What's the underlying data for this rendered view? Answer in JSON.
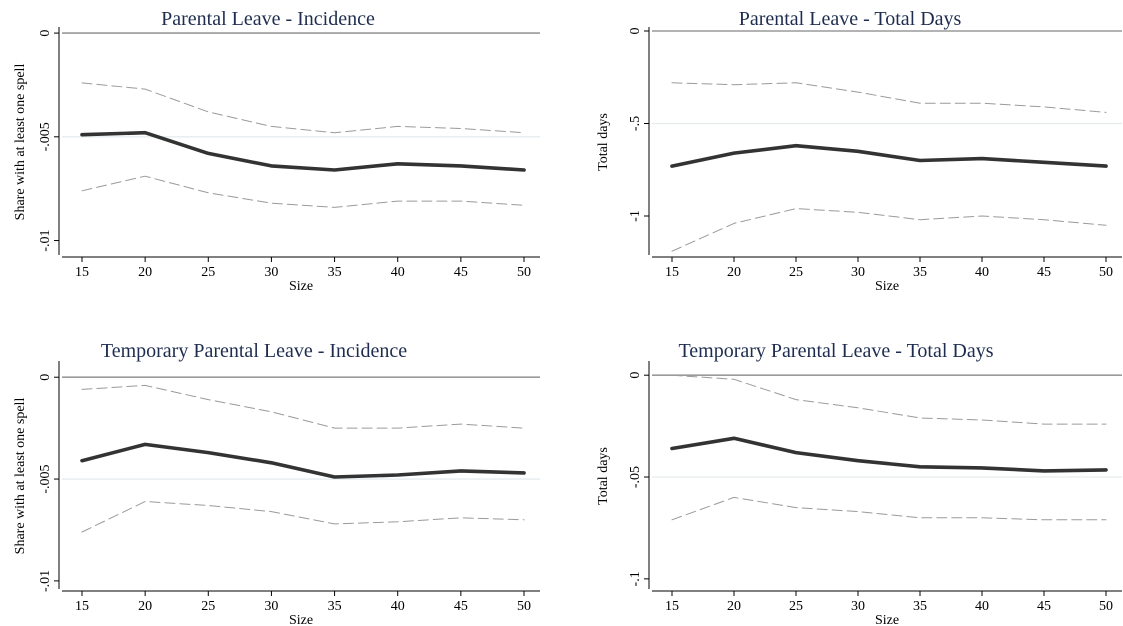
{
  "chart_data": [
    {
      "type": "line",
      "title": "Parental Leave - Incidence",
      "xlabel": "Size",
      "ylabel": "Share with at least one spell",
      "x": [
        15,
        20,
        25,
        30,
        35,
        40,
        45,
        50
      ],
      "xticks": [
        "15",
        "20",
        "25",
        "30",
        "35",
        "40",
        "45",
        "50"
      ],
      "yticks": [
        {
          "v": 0,
          "label": "0"
        },
        {
          "v": -0.005,
          "label": "-.005"
        },
        {
          "v": -0.01,
          "label": "-.01"
        }
      ],
      "ylim": [
        -0.0106,
        0.0001
      ],
      "zero_line": true,
      "grid": true,
      "series": [
        {
          "role": "estimate",
          "color": "#333333",
          "values": [
            -0.0049,
            -0.0048,
            -0.0058,
            -0.0064,
            -0.0066,
            -0.0063,
            -0.0064,
            -0.0066
          ]
        },
        {
          "role": "upper",
          "color": "#9a9a9a",
          "values": [
            -0.0024,
            -0.0027,
            -0.0038,
            -0.0045,
            -0.0048,
            -0.0045,
            -0.0046,
            -0.0048
          ]
        },
        {
          "role": "lower",
          "color": "#9a9a9a",
          "values": [
            -0.0076,
            -0.0069,
            -0.0077,
            -0.0082,
            -0.0084,
            -0.0081,
            -0.0081,
            -0.0083
          ]
        }
      ]
    },
    {
      "type": "line",
      "title": "Parental Leave - Total Days",
      "xlabel": "Size",
      "ylabel": "Total days",
      "x": [
        15,
        20,
        25,
        30,
        35,
        40,
        45,
        50
      ],
      "xticks": [
        "15",
        "20",
        "25",
        "30",
        "35",
        "40",
        "45",
        "50"
      ],
      "yticks": [
        {
          "v": 0,
          "label": "0"
        },
        {
          "v": -0.5,
          "label": "-.5"
        },
        {
          "v": -1,
          "label": "-1"
        }
      ],
      "ylim": [
        -1.2,
        0.0
      ],
      "zero_line": true,
      "grid": true,
      "series": [
        {
          "role": "estimate",
          "color": "#333333",
          "values": [
            -0.73,
            -0.66,
            -0.62,
            -0.65,
            -0.7,
            -0.69,
            -0.71,
            -0.73
          ]
        },
        {
          "role": "upper",
          "color": "#9a9a9a",
          "values": [
            -0.28,
            -0.29,
            -0.28,
            -0.33,
            -0.39,
            -0.39,
            -0.41,
            -0.44
          ]
        },
        {
          "role": "lower",
          "color": "#9a9a9a",
          "values": [
            -1.19,
            -1.04,
            -0.96,
            -0.98,
            -1.02,
            -1.0,
            -1.02,
            -1.05
          ]
        }
      ]
    },
    {
      "type": "line",
      "title": "Temporary Parental Leave - Incidence",
      "xlabel": "Size",
      "ylabel": "Share with at least one spell",
      "x": [
        15,
        20,
        25,
        30,
        35,
        40,
        45,
        50
      ],
      "xticks": [
        "15",
        "20",
        "25",
        "30",
        "35",
        "40",
        "45",
        "50"
      ],
      "yticks": [
        {
          "v": 0,
          "label": "0"
        },
        {
          "v": -0.005,
          "label": "-.005"
        },
        {
          "v": -0.01,
          "label": "-.01"
        }
      ],
      "ylim": [
        -0.0103,
        0.0006
      ],
      "zero_line": true,
      "grid": true,
      "series": [
        {
          "role": "estimate",
          "color": "#333333",
          "values": [
            -0.0041,
            -0.0033,
            -0.0037,
            -0.0042,
            -0.0049,
            -0.0048,
            -0.0046,
            -0.0047
          ]
        },
        {
          "role": "upper",
          "color": "#9a9a9a",
          "values": [
            -0.0006,
            -0.0004,
            -0.0011,
            -0.0017,
            -0.0025,
            -0.0025,
            -0.0023,
            -0.0025
          ]
        },
        {
          "role": "lower",
          "color": "#9a9a9a",
          "values": [
            -0.0076,
            -0.0061,
            -0.0063,
            -0.0066,
            -0.0072,
            -0.0071,
            -0.0069,
            -0.007
          ]
        }
      ]
    },
    {
      "type": "line",
      "title": "Temporary Parental Leave - Total Days",
      "xlabel": "Size",
      "ylabel": "Total days",
      "x": [
        15,
        20,
        25,
        30,
        35,
        40,
        45,
        50
      ],
      "xticks": [
        "15",
        "20",
        "25",
        "30",
        "35",
        "40",
        "45",
        "50"
      ],
      "yticks": [
        {
          "v": 0,
          "label": "0"
        },
        {
          "v": -0.05,
          "label": "-.05"
        },
        {
          "v": -0.1,
          "label": "-.1"
        }
      ],
      "ylim": [
        -0.104,
        0.005
      ],
      "zero_line": true,
      "grid": true,
      "series": [
        {
          "role": "estimate",
          "color": "#333333",
          "values": [
            -0.036,
            -0.031,
            -0.038,
            -0.042,
            -0.045,
            -0.0455,
            -0.047,
            -0.0465
          ]
        },
        {
          "role": "upper",
          "color": "#9a9a9a",
          "values": [
            0.0,
            -0.002,
            -0.012,
            -0.016,
            -0.021,
            -0.022,
            -0.024,
            -0.024
          ]
        },
        {
          "role": "lower",
          "color": "#9a9a9a",
          "values": [
            -0.071,
            -0.06,
            -0.065,
            -0.067,
            -0.07,
            -0.07,
            -0.071,
            -0.071
          ]
        }
      ]
    }
  ]
}
